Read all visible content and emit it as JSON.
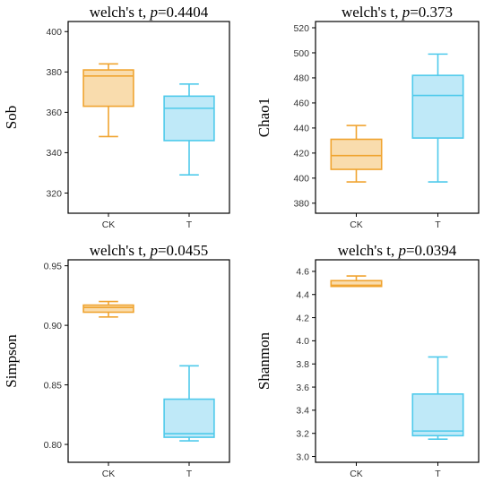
{
  "chart_data": [
    {
      "type": "box",
      "title_prefix": "welch's t, ",
      "title_p_symbol": "p",
      "title_p_value": "=0.4404",
      "ylabel": "Sob",
      "ylim": [
        310,
        405
      ],
      "yticks": [
        320,
        340,
        360,
        380,
        400
      ],
      "categories": [
        "CK",
        "T"
      ],
      "boxes": [
        {
          "name": "CK",
          "whislo": 348,
          "q1": 363,
          "med": 378,
          "q3": 381,
          "whishi": 384,
          "fill": "#f9dcad",
          "stroke": "#f0a430"
        },
        {
          "name": "T",
          "whislo": 329,
          "q1": 346,
          "med": 362,
          "q3": 368,
          "whishi": 374,
          "fill": "#bfe9f8",
          "stroke": "#4fcaeb"
        }
      ]
    },
    {
      "type": "box",
      "title_prefix": "welch's t, ",
      "title_p_symbol": "p",
      "title_p_value": "=0.373",
      "ylabel": "Chao1",
      "ylim": [
        372,
        525
      ],
      "yticks": [
        380,
        400,
        420,
        440,
        460,
        480,
        500,
        520
      ],
      "categories": [
        "CK",
        "T"
      ],
      "boxes": [
        {
          "name": "CK",
          "whislo": 397,
          "q1": 407,
          "med": 418,
          "q3": 431,
          "whishi": 442,
          "fill": "#f9dcad",
          "stroke": "#f0a430"
        },
        {
          "name": "T",
          "whislo": 397,
          "q1": 432,
          "med": 466,
          "q3": 482,
          "whishi": 499,
          "fill": "#bfe9f8",
          "stroke": "#4fcaeb"
        }
      ]
    },
    {
      "type": "box",
      "title_prefix": "welch's t, ",
      "title_p_symbol": "p",
      "title_p_value": "=0.0455",
      "ylabel": "Simpson",
      "ylim": [
        0.785,
        0.955
      ],
      "yticks": [
        0.8,
        0.85,
        0.9,
        0.95
      ],
      "ytick_labels": [
        "0.80",
        "0.85",
        "0.90",
        "0.95"
      ],
      "categories": [
        "CK",
        "T"
      ],
      "boxes": [
        {
          "name": "CK",
          "whislo": 0.907,
          "q1": 0.911,
          "med": 0.915,
          "q3": 0.917,
          "whishi": 0.92,
          "fill": "#f9dcad",
          "stroke": "#f0a430"
        },
        {
          "name": "T",
          "whislo": 0.803,
          "q1": 0.806,
          "med": 0.809,
          "q3": 0.838,
          "whishi": 0.866,
          "fill": "#bfe9f8",
          "stroke": "#4fcaeb"
        }
      ]
    },
    {
      "type": "box",
      "title_prefix": "welch's t, ",
      "title_p_symbol": "p",
      "title_p_value": "=0.0394",
      "ylabel": "Shanmon",
      "ylim": [
        2.95,
        4.7
      ],
      "yticks": [
        3.0,
        3.2,
        3.4,
        3.6,
        3.8,
        4.0,
        4.2,
        4.4,
        4.6
      ],
      "ytick_labels": [
        "3.0",
        "3.2",
        "3.4",
        "3.6",
        "3.8",
        "4.0",
        "4.2",
        "4.4",
        "4.6"
      ],
      "categories": [
        "CK",
        "T"
      ],
      "boxes": [
        {
          "name": "CK",
          "whislo": 4.47,
          "q1": 4.47,
          "med": 4.48,
          "q3": 4.52,
          "whishi": 4.56,
          "fill": "#f9dcad",
          "stroke": "#f0a430"
        },
        {
          "name": "T",
          "whislo": 3.15,
          "q1": 3.18,
          "med": 3.22,
          "q3": 3.54,
          "whishi": 3.86,
          "fill": "#bfe9f8",
          "stroke": "#4fcaeb"
        }
      ]
    }
  ]
}
